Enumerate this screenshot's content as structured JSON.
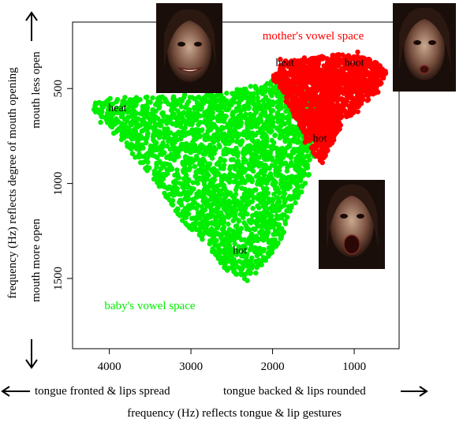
{
  "chart_data": {
    "type": "scatter",
    "x_axis": {
      "ticks": [
        4000,
        3000,
        2000,
        1000
      ],
      "range": [
        4450,
        450
      ],
      "reversed": true,
      "label": "frequency (Hz) reflects tongue & lip gestures",
      "left_annotation": "tongue fronted & lips spread",
      "right_annotation": "tongue backed & lips rounded"
    },
    "y_axis": {
      "ticks": [
        500,
        1000,
        1500
      ],
      "range": [
        150,
        1870
      ],
      "reversed": true,
      "label": "frequency (Hz) reflects degree of mouth opening",
      "top_annotation": "mouth less open",
      "bottom_annotation": "mouth more open"
    },
    "series": [
      {
        "name": "mother's vowel space",
        "color": "#ff0000",
        "region": [
          [
            1950,
            400
          ],
          [
            1850,
            350
          ],
          [
            1500,
            330
          ],
          [
            1150,
            320
          ],
          [
            880,
            330
          ],
          [
            650,
            380
          ],
          [
            600,
            430
          ],
          [
            700,
            520
          ],
          [
            950,
            600
          ],
          [
            1150,
            700
          ],
          [
            1300,
            810
          ],
          [
            1400,
            900
          ],
          [
            1500,
            840
          ],
          [
            1650,
            720
          ],
          [
            1800,
            600
          ],
          [
            1900,
            500
          ],
          [
            2000,
            450
          ]
        ],
        "vowel_labels": [
          {
            "text": "heat",
            "x": 1850,
            "y": 380
          },
          {
            "text": "hoot",
            "x": 1000,
            "y": 380
          },
          {
            "text": "hot",
            "x": 1420,
            "y": 780
          }
        ]
      },
      {
        "name": "baby's vowel space",
        "color": "#00ee00",
        "region": [
          [
            4200,
            590
          ],
          [
            4050,
            550
          ],
          [
            3500,
            540
          ],
          [
            3000,
            545
          ],
          [
            2600,
            520
          ],
          [
            2200,
            480
          ],
          [
            1900,
            450
          ],
          [
            1600,
            470
          ],
          [
            1450,
            560
          ],
          [
            1400,
            700
          ],
          [
            1500,
            900
          ],
          [
            1700,
            1100
          ],
          [
            1900,
            1300
          ],
          [
            2100,
            1420
          ],
          [
            2300,
            1520
          ],
          [
            2600,
            1450
          ],
          [
            2800,
            1320
          ],
          [
            3100,
            1200
          ],
          [
            3500,
            950
          ],
          [
            3900,
            760
          ],
          [
            4150,
            650
          ]
        ],
        "vowel_labels": [
          {
            "text": "heat",
            "x": 3900,
            "y": 620
          },
          {
            "text": "hot",
            "x": 2400,
            "y": 1370
          }
        ]
      }
    ],
    "grid": false,
    "legend": "none"
  },
  "colors": {
    "mother": "#ff0000",
    "baby": "#00ee00",
    "axis": "#000000"
  }
}
